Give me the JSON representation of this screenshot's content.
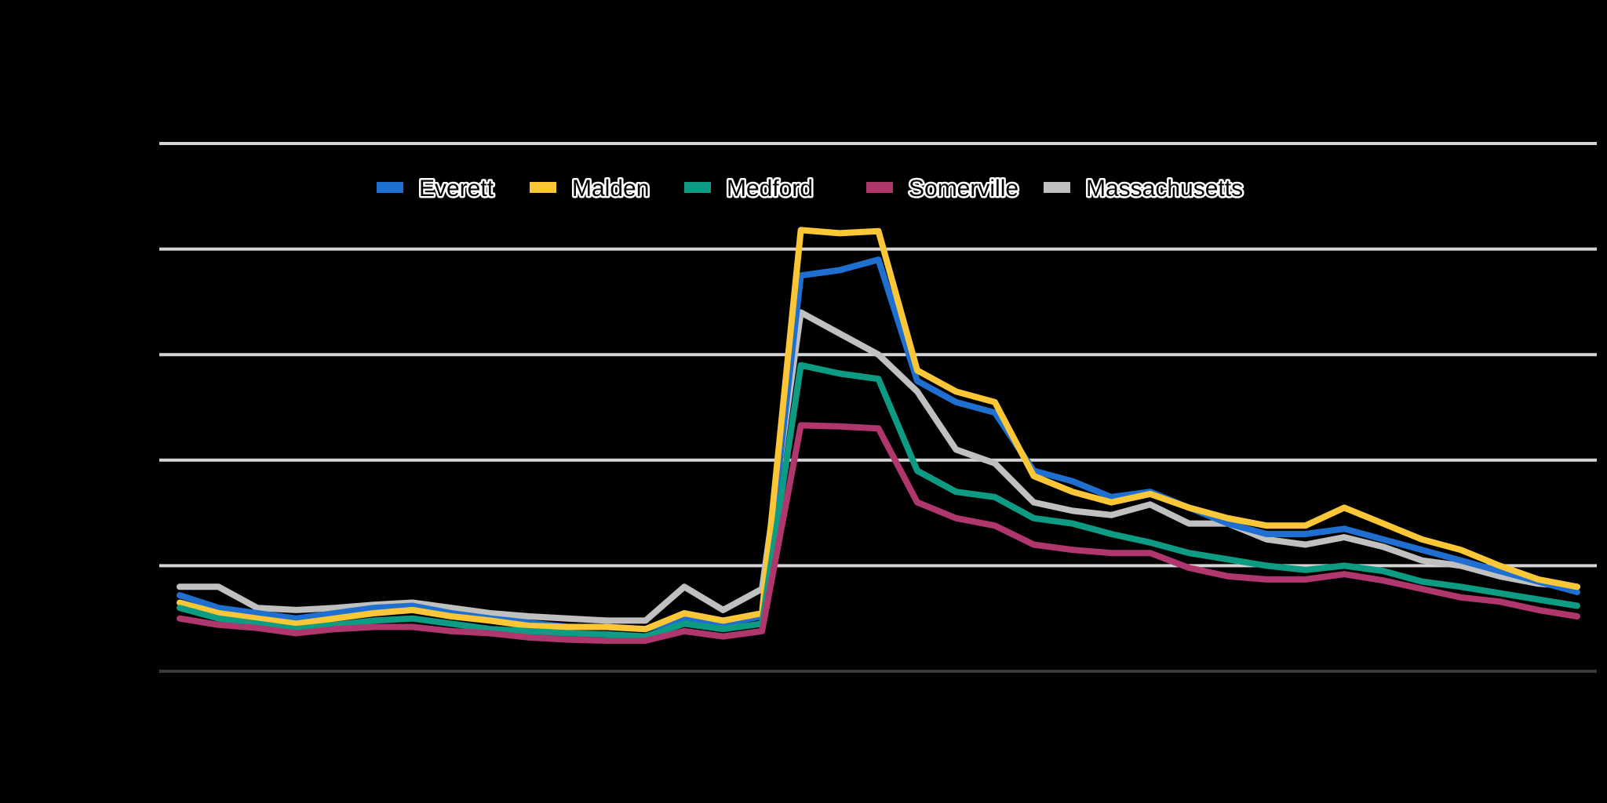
{
  "chart_data": {
    "type": "line",
    "title": "",
    "xlabel": "",
    "ylabel": "",
    "ylim": [
      0,
      5
    ],
    "grid": true,
    "legend_position": "top",
    "x": [
      1,
      2,
      3,
      4,
      5,
      6,
      7,
      8,
      9,
      10,
      11,
      12,
      13,
      14,
      15,
      16,
      17,
      18,
      19,
      20,
      21,
      22,
      23,
      24,
      25,
      26,
      27,
      28,
      29,
      30,
      31,
      32,
      33,
      34,
      35,
      36,
      37
    ],
    "series": [
      {
        "name": "Everett",
        "color": "#1f6fd0",
        "values": [
          0.72,
          0.6,
          0.55,
          0.5,
          0.55,
          0.6,
          0.62,
          0.55,
          0.5,
          0.46,
          0.42,
          0.42,
          0.4,
          0.5,
          0.45,
          0.52,
          3.75,
          3.8,
          3.9,
          2.75,
          2.55,
          2.45,
          1.9,
          1.8,
          1.65,
          1.7,
          1.55,
          1.4,
          1.3,
          1.3,
          1.35,
          1.25,
          1.15,
          1.05,
          0.95,
          0.85,
          0.75
        ]
      },
      {
        "name": "Malden",
        "color": "#fcc737",
        "values": [
          0.65,
          0.55,
          0.5,
          0.45,
          0.5,
          0.55,
          0.58,
          0.52,
          0.48,
          0.43,
          0.42,
          0.42,
          0.4,
          0.55,
          0.48,
          0.55,
          4.18,
          4.15,
          4.17,
          2.85,
          2.65,
          2.55,
          1.85,
          1.7,
          1.6,
          1.68,
          1.55,
          1.45,
          1.38,
          1.38,
          1.55,
          1.4,
          1.25,
          1.15,
          1.0,
          0.87,
          0.8
        ]
      },
      {
        "name": "Medford",
        "color": "#0e9b84",
        "values": [
          0.6,
          0.5,
          0.45,
          0.4,
          0.44,
          0.48,
          0.5,
          0.45,
          0.4,
          0.38,
          0.36,
          0.35,
          0.33,
          0.45,
          0.4,
          0.45,
          2.9,
          2.82,
          2.77,
          1.9,
          1.7,
          1.65,
          1.45,
          1.4,
          1.3,
          1.22,
          1.12,
          1.06,
          1.0,
          0.96,
          1.0,
          0.95,
          0.85,
          0.8,
          0.74,
          0.68,
          0.62
        ]
      },
      {
        "name": "Somerville",
        "color": "#b0366e",
        "values": [
          0.5,
          0.44,
          0.41,
          0.36,
          0.4,
          0.42,
          0.42,
          0.38,
          0.36,
          0.32,
          0.3,
          0.29,
          0.29,
          0.38,
          0.33,
          0.38,
          2.33,
          2.32,
          2.3,
          1.6,
          1.45,
          1.38,
          1.2,
          1.15,
          1.12,
          1.12,
          0.98,
          0.9,
          0.87,
          0.87,
          0.92,
          0.86,
          0.78,
          0.7,
          0.66,
          0.58,
          0.52
        ]
      },
      {
        "name": "Massachusetts",
        "color": "#c0c0c0",
        "values": [
          0.8,
          0.8,
          0.6,
          0.58,
          0.6,
          0.63,
          0.65,
          0.6,
          0.55,
          0.52,
          0.5,
          0.48,
          0.48,
          0.8,
          0.58,
          0.78,
          3.4,
          3.2,
          3.0,
          2.65,
          2.1,
          1.97,
          1.6,
          1.52,
          1.48,
          1.58,
          1.4,
          1.4,
          1.25,
          1.2,
          1.27,
          1.18,
          1.05,
          1.0,
          0.9,
          0.83,
          0.8
        ]
      }
    ]
  }
}
